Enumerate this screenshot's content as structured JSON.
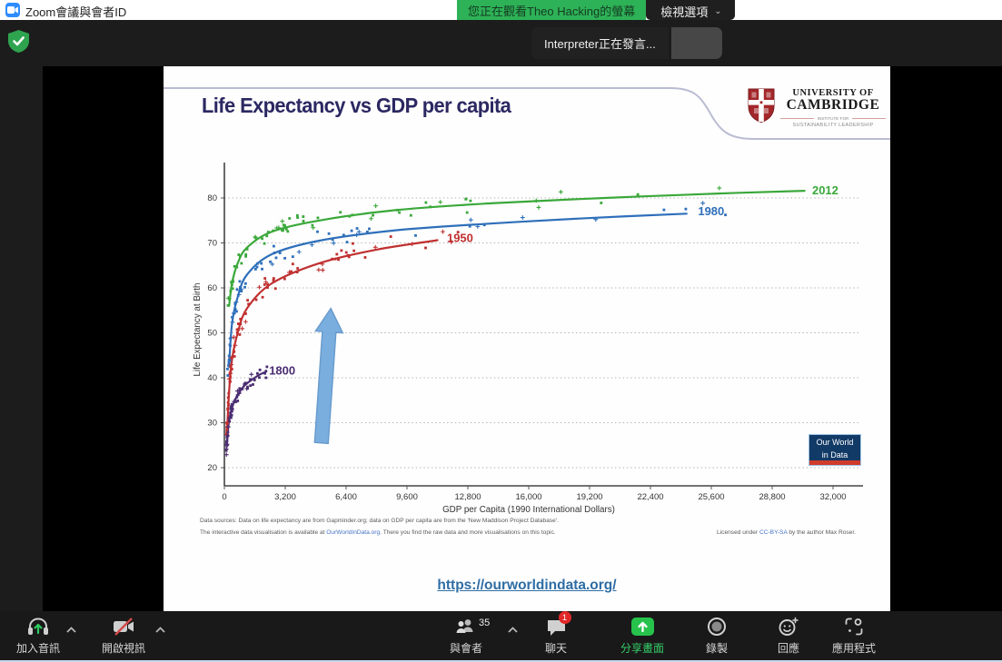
{
  "titlebar": {
    "title": "Zoom會議與會者ID"
  },
  "status_banner": {
    "watching": "您正在觀看Theo Hacking的螢幕",
    "view_options": "檢視選項"
  },
  "toast": {
    "text": "Interpreter正在發言..."
  },
  "slide": {
    "title": "Life Expectancy vs GDP per capita",
    "cambridge": {
      "l1": "UNIVERSITY OF",
      "l2": "CAMBRIDGE",
      "l3": "INSTITUTE FOR",
      "l4": "SUSTAINABILITY LEADERSHIP"
    },
    "owid": {
      "l1": "Our World",
      "l2": "in Data"
    },
    "sources_line1": "Data sources: Data on life expectancy are from Gapminder.org; data on GDP per capita are from the 'New Maddison Project Database'.",
    "sources_line2a": "The interactive data visualisation is available at ",
    "sources_line2b": "OurWorldInData.org",
    "sources_line2c": ". There you find the raw data and more visualisations on this topic.",
    "license_a": "Licensed under ",
    "license_b": "CC-BY-SA",
    "license_c": " by the author Max Roser.",
    "footer_link": "https://ourworldindata.org/"
  },
  "chart_data": {
    "type": "scatter",
    "title": "Life Expectancy vs GDP per capita",
    "xlabel": "GDP per Capita (1990 International Dollars)",
    "ylabel": "Life Expectancy at Birth",
    "xlim": [
      0,
      33500
    ],
    "ylim": [
      17,
      86
    ],
    "xticks": [
      0,
      3200,
      6400,
      9600,
      12800,
      16000,
      19200,
      22400,
      25600,
      28800,
      32000
    ],
    "xtick_labels": [
      "0",
      "3,200",
      "6,400",
      "9,600",
      "12,800",
      "16,000",
      "19,200",
      "22,400",
      "25,600",
      "28,800",
      "32,000"
    ],
    "yticks": [
      20,
      30,
      40,
      50,
      60,
      70,
      80
    ],
    "grid": "horizontal-dotted",
    "legend_position": "curve-end-labels",
    "series": [
      {
        "name": "2012",
        "color": "#3aa83a",
        "label_pos": [
          30900,
          81.6
        ],
        "curve": [
          [
            250,
            56
          ],
          [
            400,
            61
          ],
          [
            700,
            65.5
          ],
          [
            1200,
            69
          ],
          [
            2500,
            72.5
          ],
          [
            5000,
            75
          ],
          [
            9000,
            77.3
          ],
          [
            14000,
            78.8
          ],
          [
            20000,
            80
          ],
          [
            26000,
            81
          ],
          [
            30500,
            81.6
          ]
        ],
        "scatter": {
          "count": 65,
          "xmin": 180,
          "xmax": 31000,
          "jitter": 2.2,
          "spread": 1.0,
          "seed": 7
        }
      },
      {
        "name": "1980",
        "color": "#2e6fba",
        "label_pos": [
          24900,
          77.0
        ],
        "curve": [
          [
            250,
            43
          ],
          [
            400,
            52
          ],
          [
            700,
            58
          ],
          [
            1200,
            63
          ],
          [
            2500,
            67.5
          ],
          [
            5000,
            70.5
          ],
          [
            9000,
            72.8
          ],
          [
            14000,
            74.3
          ],
          [
            19000,
            75.5
          ],
          [
            24300,
            76.5
          ]
        ],
        "scatter": {
          "count": 72,
          "xmin": 150,
          "xmax": 27000,
          "jitter": 2.6,
          "spread": 1.1,
          "seed": 13
        }
      },
      {
        "name": "1950",
        "color": "#c03030",
        "label_pos": [
          11700,
          71.0
        ],
        "curve": [
          [
            150,
            29
          ],
          [
            250,
            37
          ],
          [
            400,
            44
          ],
          [
            700,
            50
          ],
          [
            1200,
            55.5
          ],
          [
            2500,
            61
          ],
          [
            5000,
            65.5
          ],
          [
            8000,
            68.5
          ],
          [
            11200,
            70.6
          ]
        ],
        "scatter": {
          "count": 85,
          "xmin": 120,
          "xmax": 13000,
          "jitter": 3.2,
          "spread": 1.25,
          "seed": 3
        }
      },
      {
        "name": "1800",
        "color": "#4b2d72",
        "label_pos": [
          2350,
          41.5
        ],
        "curve": [
          [
            120,
            24.5
          ],
          [
            250,
            30.5
          ],
          [
            500,
            34.5
          ],
          [
            1000,
            38
          ],
          [
            1700,
            40.3
          ],
          [
            2100,
            41.2
          ]
        ],
        "scatter": {
          "count": 55,
          "xmin": 100,
          "xmax": 2400,
          "jitter": 2.4,
          "spread": 1.0,
          "seed": 21
        }
      }
    ],
    "annotation_arrow": {
      "x": 5100,
      "y_from": 25.5,
      "y_to": 55.5,
      "fill": "#6fa8dc",
      "stroke": "#5b92c9"
    }
  },
  "toolbar": {
    "audio": {
      "label": "加入音訊"
    },
    "video": {
      "label": "開啟視訊"
    },
    "participants": {
      "label": "與會者",
      "count": "35"
    },
    "chat": {
      "label": "聊天",
      "badge": "1"
    },
    "share": {
      "label": "分享畫面"
    },
    "record": {
      "label": "錄製"
    },
    "reactions": {
      "label": "回應"
    },
    "apps": {
      "label": "應用程式"
    }
  }
}
